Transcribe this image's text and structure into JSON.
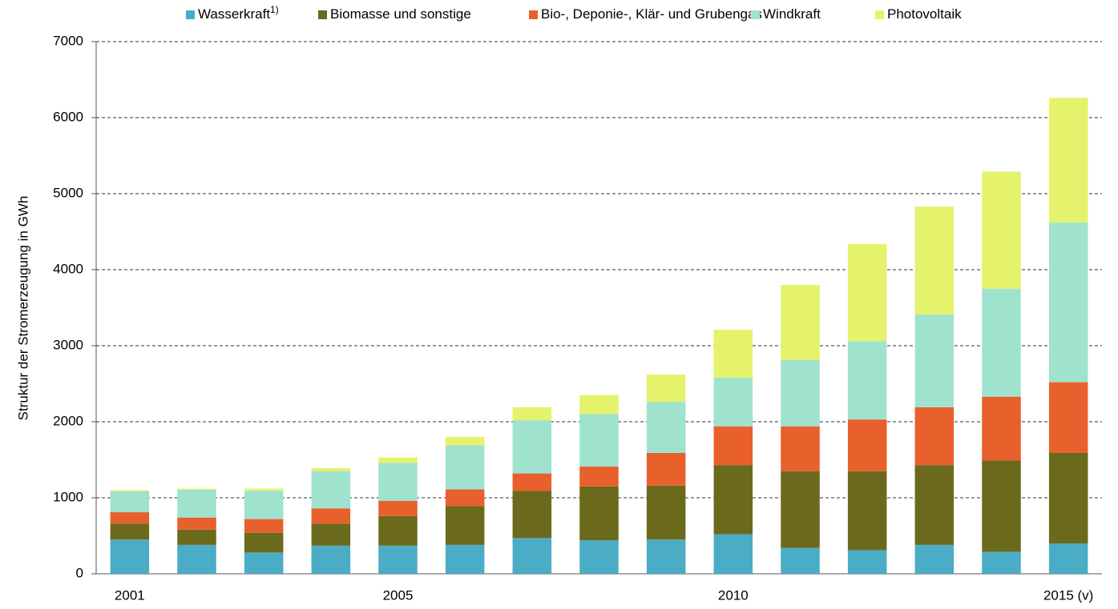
{
  "chart_data": {
    "type": "stacked_bar",
    "y_label": "Struktur der Stromerzeugung in GWh",
    "categories": [
      "2001",
      null,
      null,
      null,
      "2005",
      null,
      null,
      null,
      null,
      "2010",
      null,
      null,
      null,
      null,
      "2015 (v)"
    ],
    "series": [
      {
        "name": "Wasserkraft",
        "note": "1)",
        "color": "#4bacc6",
        "values": [
          450,
          380,
          280,
          370,
          370,
          380,
          470,
          440,
          450,
          520,
          340,
          310,
          380,
          290,
          400
        ]
      },
      {
        "name": "Biomasse und sonstige",
        "color": "#6b6a1c",
        "values": [
          210,
          200,
          260,
          290,
          390,
          510,
          620,
          710,
          710,
          910,
          1010,
          1040,
          1050,
          1200,
          1190
        ]
      },
      {
        "name": "Bio-, Deponie-, Klär- und Grubengas",
        "color": "#e8602c",
        "values": [
          150,
          160,
          180,
          200,
          200,
          220,
          230,
          260,
          430,
          510,
          590,
          680,
          760,
          840,
          930
        ]
      },
      {
        "name": "Windkraft",
        "color": "#9fe3cf",
        "values": [
          275,
          365,
          370,
          490,
          500,
          580,
          700,
          690,
          670,
          640,
          870,
          1030,
          1220,
          1420,
          2100
        ]
      },
      {
        "name": "Photovoltaik",
        "color": "#e5f26c",
        "values": [
          15,
          15,
          30,
          40,
          70,
          110,
          170,
          250,
          360,
          630,
          990,
          1280,
          1420,
          1540,
          1640
        ]
      }
    ],
    "ylim": [
      0,
      7000
    ],
    "yticks": [
      0,
      1000,
      2000,
      3000,
      4000,
      5000,
      6000,
      7000
    ],
    "grid": true
  }
}
